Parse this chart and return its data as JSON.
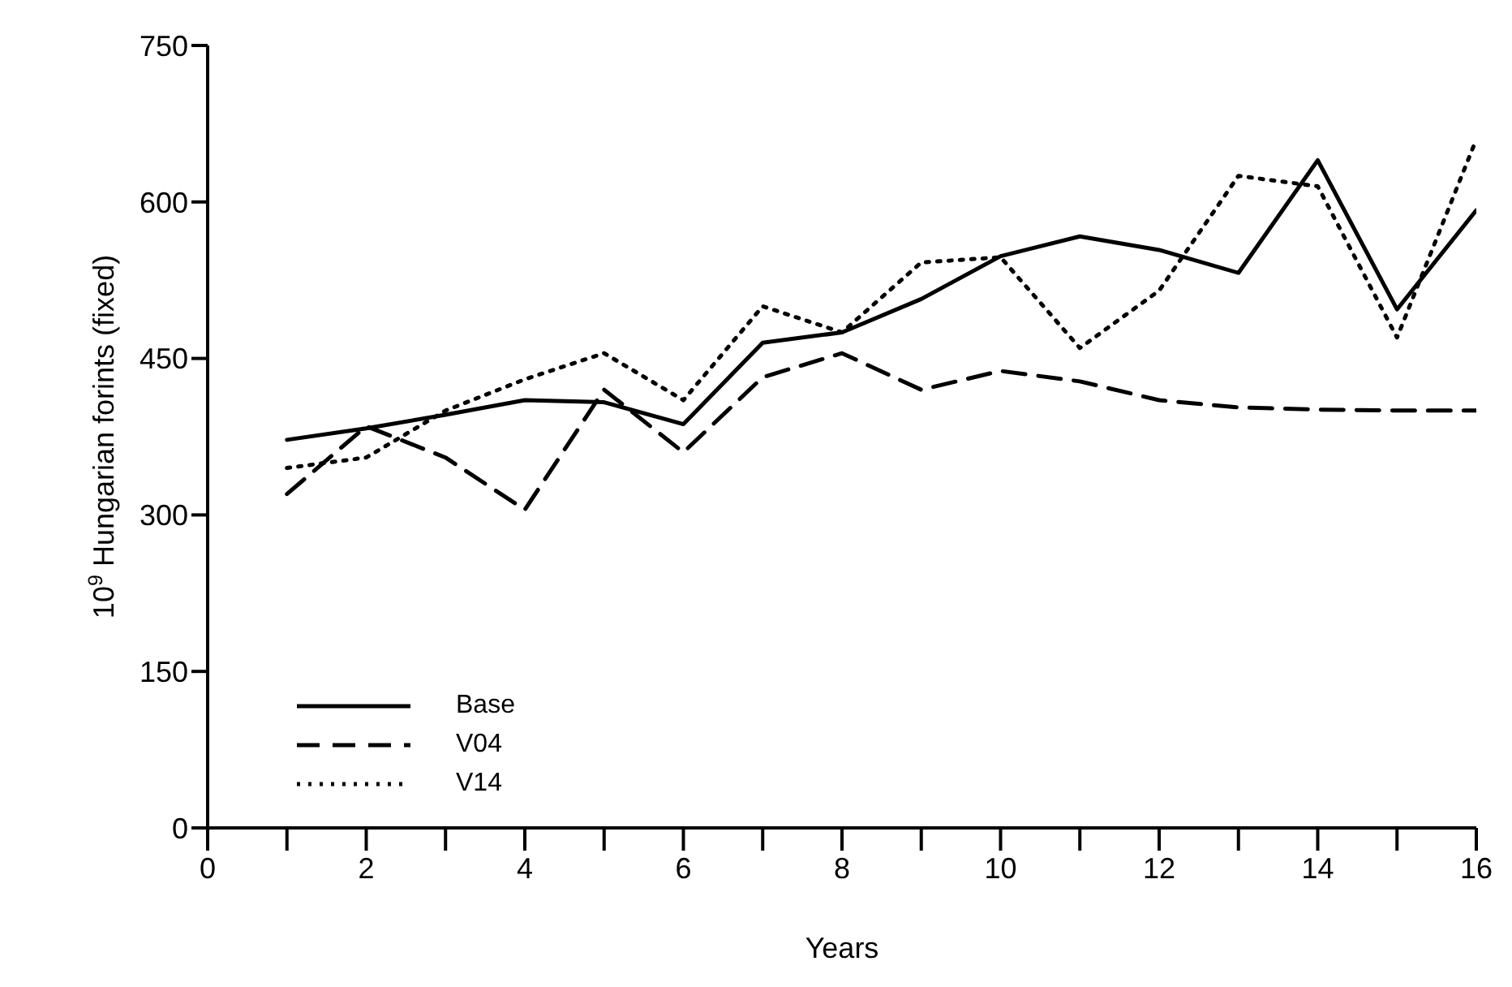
{
  "chart_data": {
    "type": "line",
    "xlabel": "Years",
    "ylabel": "10$^{9}$ Hungarian forints (fixed)",
    "x": [
      1,
      2,
      3,
      4,
      5,
      6,
      7,
      8,
      9,
      10,
      11,
      12,
      13,
      14,
      15,
      16
    ],
    "series": [
      {
        "name": "Base",
        "color": "#000000",
        "line_style": "solid",
        "values": [
          372,
          383,
          396,
          410,
          408,
          387,
          465,
          475,
          507,
          548,
          567,
          554,
          532,
          640,
          497,
          592
        ]
      },
      {
        "name": "V04",
        "color": "#000000",
        "line_style": "dashed",
        "values": [
          320,
          385,
          355,
          305,
          420,
          360,
          432,
          455,
          420,
          438,
          428,
          410,
          403,
          401,
          400,
          400
        ]
      },
      {
        "name": "V14",
        "color": "#000000",
        "line_style": "dotted",
        "values": [
          345,
          355,
          400,
          430,
          455,
          410,
          500,
          475,
          542,
          547,
          460,
          515,
          625,
          615,
          470,
          660
        ]
      }
    ],
    "xlim": [
      0,
      16
    ],
    "ylim": [
      0,
      750
    ],
    "xticks": [
      0,
      {
        "value": 1,
        "label": null
      },
      2,
      {
        "value": 3,
        "label": null
      },
      4,
      {
        "value": 5,
        "label": null
      },
      6,
      {
        "value": 7,
        "label": null
      },
      8,
      {
        "value": 9,
        "label": null
      },
      10,
      {
        "value": 11,
        "label": null
      },
      12,
      {
        "value": 13,
        "label": null
      },
      14,
      {
        "value": 15,
        "label": null
      },
      16
    ],
    "yticks": [
      0,
      150,
      300,
      450,
      600,
      750
    ],
    "grid": false,
    "marker": "none",
    "legend": "bottom left"
  }
}
